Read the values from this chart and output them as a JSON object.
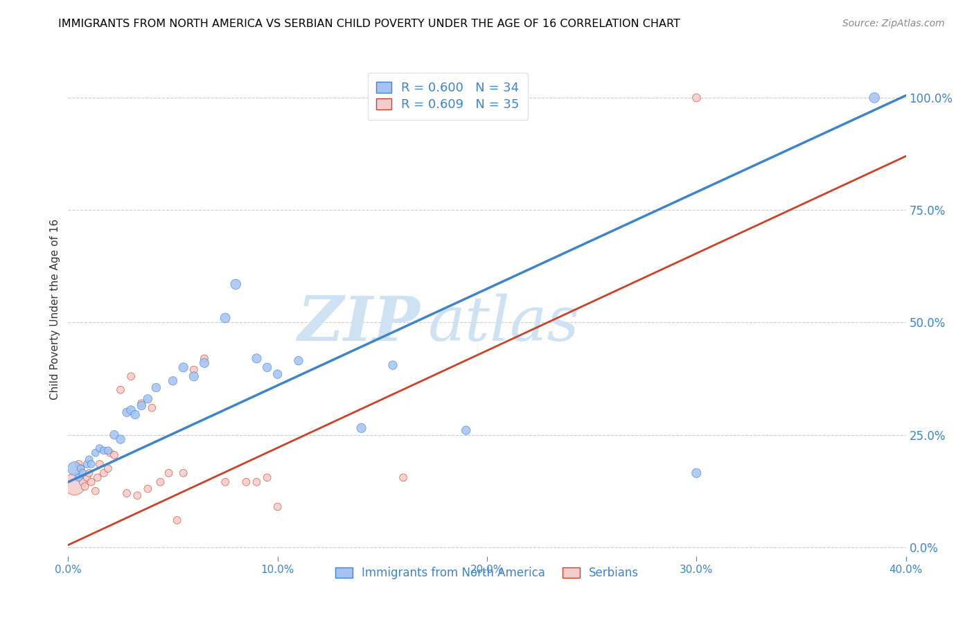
{
  "title": "IMMIGRANTS FROM NORTH AMERICA VS SERBIAN CHILD POVERTY UNDER THE AGE OF 16 CORRELATION CHART",
  "source": "Source: ZipAtlas.com",
  "ylabel": "Child Poverty Under the Age of 16",
  "xlim": [
    0.0,
    0.4
  ],
  "ylim": [
    -0.02,
    1.08
  ],
  "xticks": [
    0.0,
    0.1,
    0.2,
    0.3,
    0.4
  ],
  "xtick_labels": [
    "0.0%",
    "10.0%",
    "20.0%",
    "30.0%",
    "40.0%"
  ],
  "yticks_right": [
    0.0,
    0.25,
    0.5,
    0.75,
    1.0
  ],
  "ytick_labels_right": [
    "0.0%",
    "25.0%",
    "50.0%",
    "75.0%",
    "100.0%"
  ],
  "legend_blue_label": "R = 0.600   N = 34",
  "legend_pink_label": "R = 0.609   N = 35",
  "legend_blue_series": "Immigrants from North America",
  "legend_pink_series": "Serbians",
  "blue_color": "#a4c2f4",
  "pink_color": "#f4cccc",
  "line_blue_color": "#3d85c8",
  "line_pink_color": "#cc4125",
  "watermark_zip": "ZIP",
  "watermark_atlas": "atlas",
  "watermark_color": "#cfe2f3",
  "blue_scatter_x": [
    0.003,
    0.005,
    0.006,
    0.007,
    0.009,
    0.01,
    0.011,
    0.013,
    0.015,
    0.017,
    0.019,
    0.022,
    0.025,
    0.028,
    0.03,
    0.032,
    0.035,
    0.038,
    0.042,
    0.05,
    0.055,
    0.06,
    0.065,
    0.075,
    0.08,
    0.09,
    0.095,
    0.1,
    0.11,
    0.14,
    0.155,
    0.19,
    0.3,
    0.385
  ],
  "blue_scatter_y": [
    0.175,
    0.155,
    0.175,
    0.165,
    0.185,
    0.195,
    0.185,
    0.21,
    0.22,
    0.215,
    0.215,
    0.25,
    0.24,
    0.3,
    0.305,
    0.295,
    0.315,
    0.33,
    0.355,
    0.37,
    0.4,
    0.38,
    0.41,
    0.51,
    0.585,
    0.42,
    0.4,
    0.385,
    0.415,
    0.265,
    0.405,
    0.26,
    0.165,
    1.0
  ],
  "blue_scatter_size": [
    200,
    60,
    60,
    60,
    60,
    60,
    60,
    60,
    60,
    60,
    60,
    80,
    80,
    80,
    80,
    80,
    80,
    80,
    80,
    80,
    90,
    90,
    90,
    100,
    110,
    90,
    80,
    80,
    80,
    90,
    80,
    80,
    90,
    110
  ],
  "pink_scatter_x": [
    0.003,
    0.005,
    0.006,
    0.007,
    0.008,
    0.009,
    0.01,
    0.011,
    0.013,
    0.014,
    0.015,
    0.017,
    0.019,
    0.02,
    0.022,
    0.025,
    0.028,
    0.03,
    0.033,
    0.035,
    0.038,
    0.04,
    0.044,
    0.048,
    0.052,
    0.055,
    0.06,
    0.065,
    0.075,
    0.085,
    0.09,
    0.095,
    0.1,
    0.16,
    0.3
  ],
  "pink_scatter_y": [
    0.14,
    0.185,
    0.175,
    0.145,
    0.135,
    0.155,
    0.165,
    0.145,
    0.125,
    0.155,
    0.185,
    0.165,
    0.175,
    0.21,
    0.205,
    0.35,
    0.12,
    0.38,
    0.115,
    0.32,
    0.13,
    0.31,
    0.145,
    0.165,
    0.06,
    0.165,
    0.395,
    0.42,
    0.145,
    0.145,
    0.145,
    0.155,
    0.09,
    0.155,
    1.0
  ],
  "pink_scatter_size": [
    500,
    60,
    60,
    60,
    60,
    60,
    60,
    60,
    60,
    60,
    60,
    60,
    60,
    60,
    60,
    60,
    60,
    60,
    60,
    60,
    60,
    60,
    60,
    60,
    60,
    60,
    60,
    60,
    60,
    60,
    60,
    60,
    60,
    60,
    70
  ],
  "blue_line_x": [
    0.0,
    0.4
  ],
  "blue_line_y": [
    0.145,
    1.005
  ],
  "pink_line_x": [
    0.0,
    0.4
  ],
  "pink_line_y": [
    0.005,
    0.87
  ],
  "background_color": "#ffffff",
  "grid_color": "#cccccc",
  "title_color": "#000000",
  "axis_label_color": "#333333",
  "tick_color": "#3d85c8"
}
